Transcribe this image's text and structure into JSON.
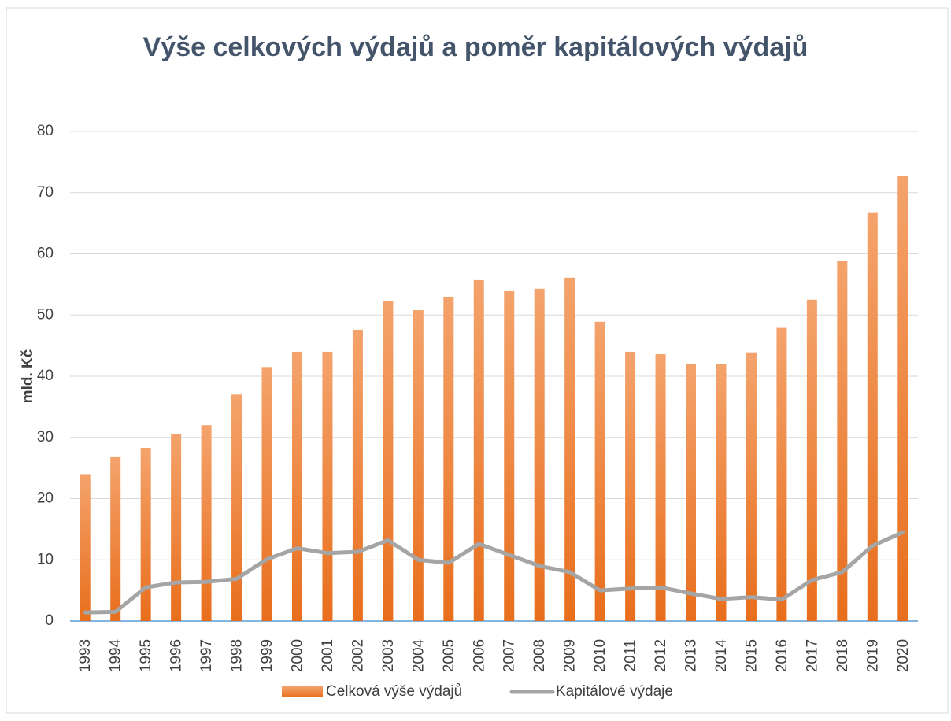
{
  "chart_data": {
    "type": "bar_line",
    "title": "Výše celkových výdajů a poměr kapitálových výdajů",
    "y_label": "mld. Kč",
    "categories": [
      "1993",
      "1994",
      "1995",
      "1996",
      "1997",
      "1998",
      "1999",
      "2000",
      "2001",
      "2002",
      "2003",
      "2004",
      "2005",
      "2006",
      "2007",
      "2008",
      "2009",
      "2010",
      "2011",
      "2012",
      "2013",
      "2014",
      "2015",
      "2016",
      "2017",
      "2018",
      "2019",
      "2020"
    ],
    "series": [
      {
        "name": "Celková výše výdajů",
        "type": "bar",
        "color": "#ed7d31",
        "values": [
          24,
          26.9,
          28.3,
          30.5,
          32,
          37,
          41.5,
          44,
          44,
          47.6,
          52.3,
          50.8,
          53,
          55.7,
          53.9,
          54.3,
          56.1,
          48.9,
          44,
          43.6,
          42,
          42,
          43.9,
          47.9,
          52.5,
          58.9,
          66.8,
          72.7
        ]
      },
      {
        "name": "Kapitálové výdaje",
        "type": "line",
        "color": "#a5a5a5",
        "values": [
          1.4,
          1.5,
          5.5,
          6.3,
          6.4,
          6.9,
          10.1,
          11.9,
          11.1,
          11.3,
          13.2,
          10,
          9.5,
          12.6,
          10.8,
          9,
          8,
          5,
          5.3,
          5.5,
          4.5,
          3.6,
          3.9,
          3.5,
          6.7,
          8,
          12.3,
          14.5
        ]
      }
    ],
    "ylim": [
      0,
      80
    ],
    "yticks": [
      0,
      10,
      20,
      30,
      40,
      50,
      60,
      70,
      80
    ],
    "grid": true,
    "legend": "bottom"
  }
}
